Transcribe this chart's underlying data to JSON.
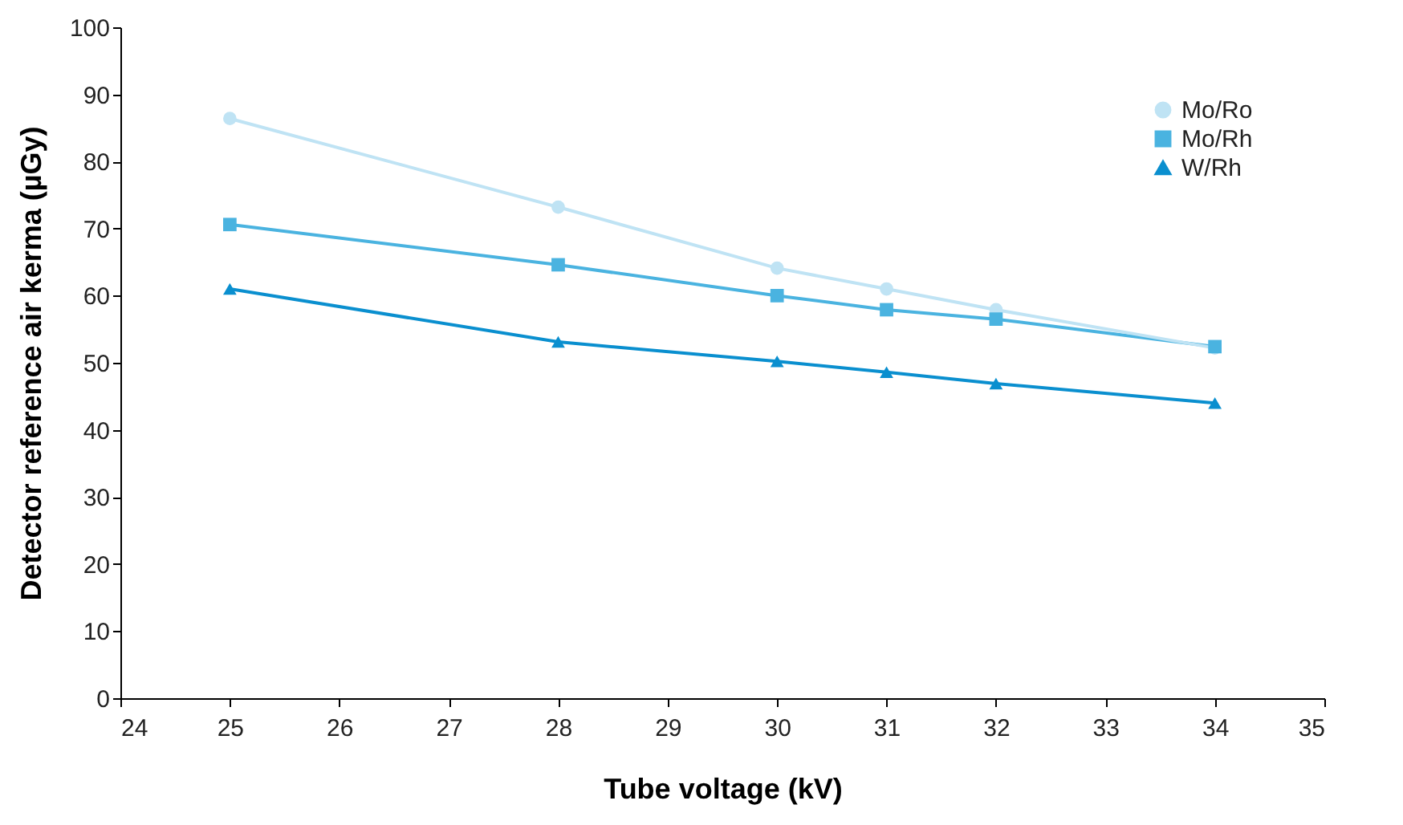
{
  "chart_data": {
    "type": "line",
    "xlabel": "Tube voltage (kV)",
    "ylabel": "Detector reference air kerma (µGy)",
    "x": [
      25,
      28,
      30,
      31,
      32,
      34
    ],
    "xlim": [
      24,
      35
    ],
    "xticks": [
      24,
      25,
      26,
      27,
      28,
      29,
      30,
      31,
      32,
      33,
      34,
      35
    ],
    "ylim": [
      0,
      100
    ],
    "yticks": [
      0,
      10,
      20,
      30,
      40,
      50,
      60,
      70,
      80,
      90,
      100
    ],
    "grid": false,
    "legend": "top right",
    "line_style": "solid",
    "series": [
      {
        "name": "Mo/Ro",
        "color": "#bfe3f4",
        "marker": "circle",
        "values": [
          86.4,
          73.2,
          64.1,
          61,
          57.9,
          52.2
        ]
      },
      {
        "name": "Mo/Rh",
        "color": "#4ab3e0",
        "marker": "square",
        "values": [
          70.6,
          64.6,
          60,
          57.9,
          56.5,
          52.4
        ]
      },
      {
        "name": "W/Rh",
        "color": "#0a8fcf",
        "marker": "triangle",
        "values": [
          61,
          53.1,
          50.2,
          48.6,
          46.9,
          44
        ]
      }
    ]
  }
}
